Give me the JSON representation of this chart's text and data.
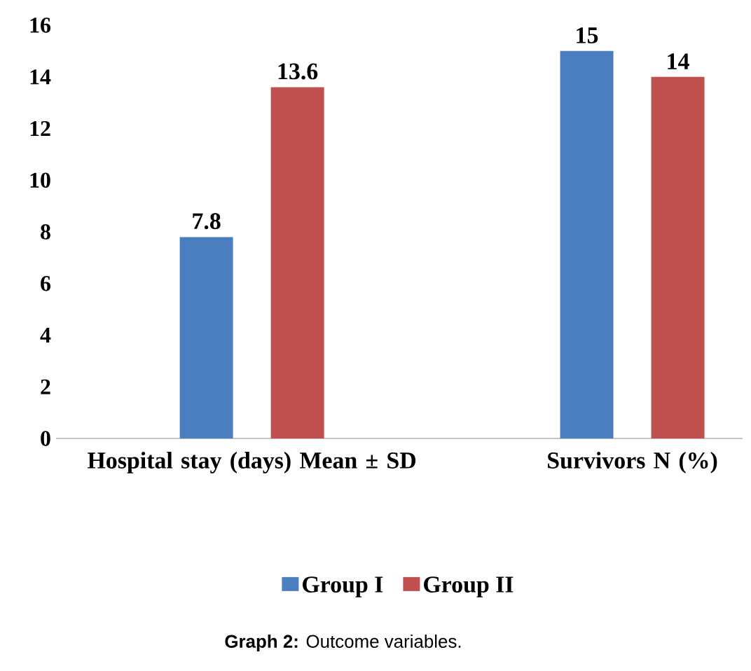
{
  "chart_data": {
    "type": "bar",
    "categories": [
      "Hospital stay (days) Mean ± SD",
      "Survivors N (%)"
    ],
    "series": [
      {
        "name": "Group I",
        "color": "#4a7ebf",
        "values": [
          7.8,
          15
        ]
      },
      {
        "name": "Group II",
        "color": "#c0504d",
        "values": [
          13.6,
          14
        ]
      }
    ],
    "ylim": [
      0,
      16
    ],
    "yticks": [
      0,
      2,
      4,
      6,
      8,
      10,
      12,
      14,
      16
    ],
    "data_labels": true,
    "legend": "bottom",
    "grid": false,
    "annotations": [
      "**Graph 2:** Outcome variables."
    ]
  }
}
